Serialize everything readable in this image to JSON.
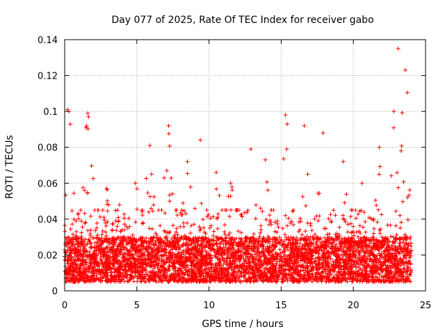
{
  "chart_data": {
    "type": "scatter",
    "title": "Day 077 of 2025, Rate Of TEC Index for receiver gabo",
    "xlabel": "GPS time / hours",
    "ylabel": "ROTI / TECUs",
    "xlim": [
      0,
      25
    ],
    "ylim": [
      0,
      0.14
    ],
    "x_ticks": [
      0,
      5,
      10,
      15,
      20,
      25
    ],
    "x_tick_labels": [
      "0",
      "5",
      "10",
      "15",
      "20",
      "25"
    ],
    "y_ticks": [
      0,
      0.02,
      0.04,
      0.06,
      0.08,
      0.1,
      0.12,
      0.14
    ],
    "y_tick_labels": [
      "0",
      "0.02",
      "0.04",
      "0.06",
      "0.08",
      "0.1",
      "0.12",
      "0.14"
    ],
    "grid": true,
    "marker": "+",
    "series_color": "#ff0000",
    "series": [
      {
        "name": "ROTI",
        "x_range_hours": [
          0,
          24
        ],
        "typical_band": [
          0.005,
          0.03
        ],
        "profile": [
          {
            "hour": 0.2,
            "max": 0.101
          },
          {
            "hour": 0.3,
            "max": 0.1
          },
          {
            "hour": 1.6,
            "max": 0.099
          },
          {
            "hour": 1.65,
            "max": 0.097
          },
          {
            "hour": 2.9,
            "max": 0.057
          },
          {
            "hour": 3.8,
            "max": 0.048
          },
          {
            "hour": 4.9,
            "max": 0.06
          },
          {
            "hour": 5.9,
            "max": 0.081
          },
          {
            "hour": 7.2,
            "max": 0.092
          },
          {
            "hour": 8.5,
            "max": 0.072
          },
          {
            "hour": 9.4,
            "max": 0.084
          },
          {
            "hour": 10.5,
            "max": 0.066
          },
          {
            "hour": 11.5,
            "max": 0.06
          },
          {
            "hour": 12.9,
            "max": 0.079
          },
          {
            "hour": 13.9,
            "max": 0.073
          },
          {
            "hour": 15.3,
            "max": 0.098
          },
          {
            "hour": 16.6,
            "max": 0.092
          },
          {
            "hour": 17.9,
            "max": 0.088
          },
          {
            "hour": 19.3,
            "max": 0.072
          },
          {
            "hour": 20.6,
            "max": 0.06
          },
          {
            "hour": 21.8,
            "max": 0.08
          },
          {
            "hour": 22.8,
            "max": 0.1
          },
          {
            "hour": 23.1,
            "max": 0.135
          },
          {
            "hour": 23.6,
            "max": 0.123
          }
        ]
      }
    ]
  }
}
